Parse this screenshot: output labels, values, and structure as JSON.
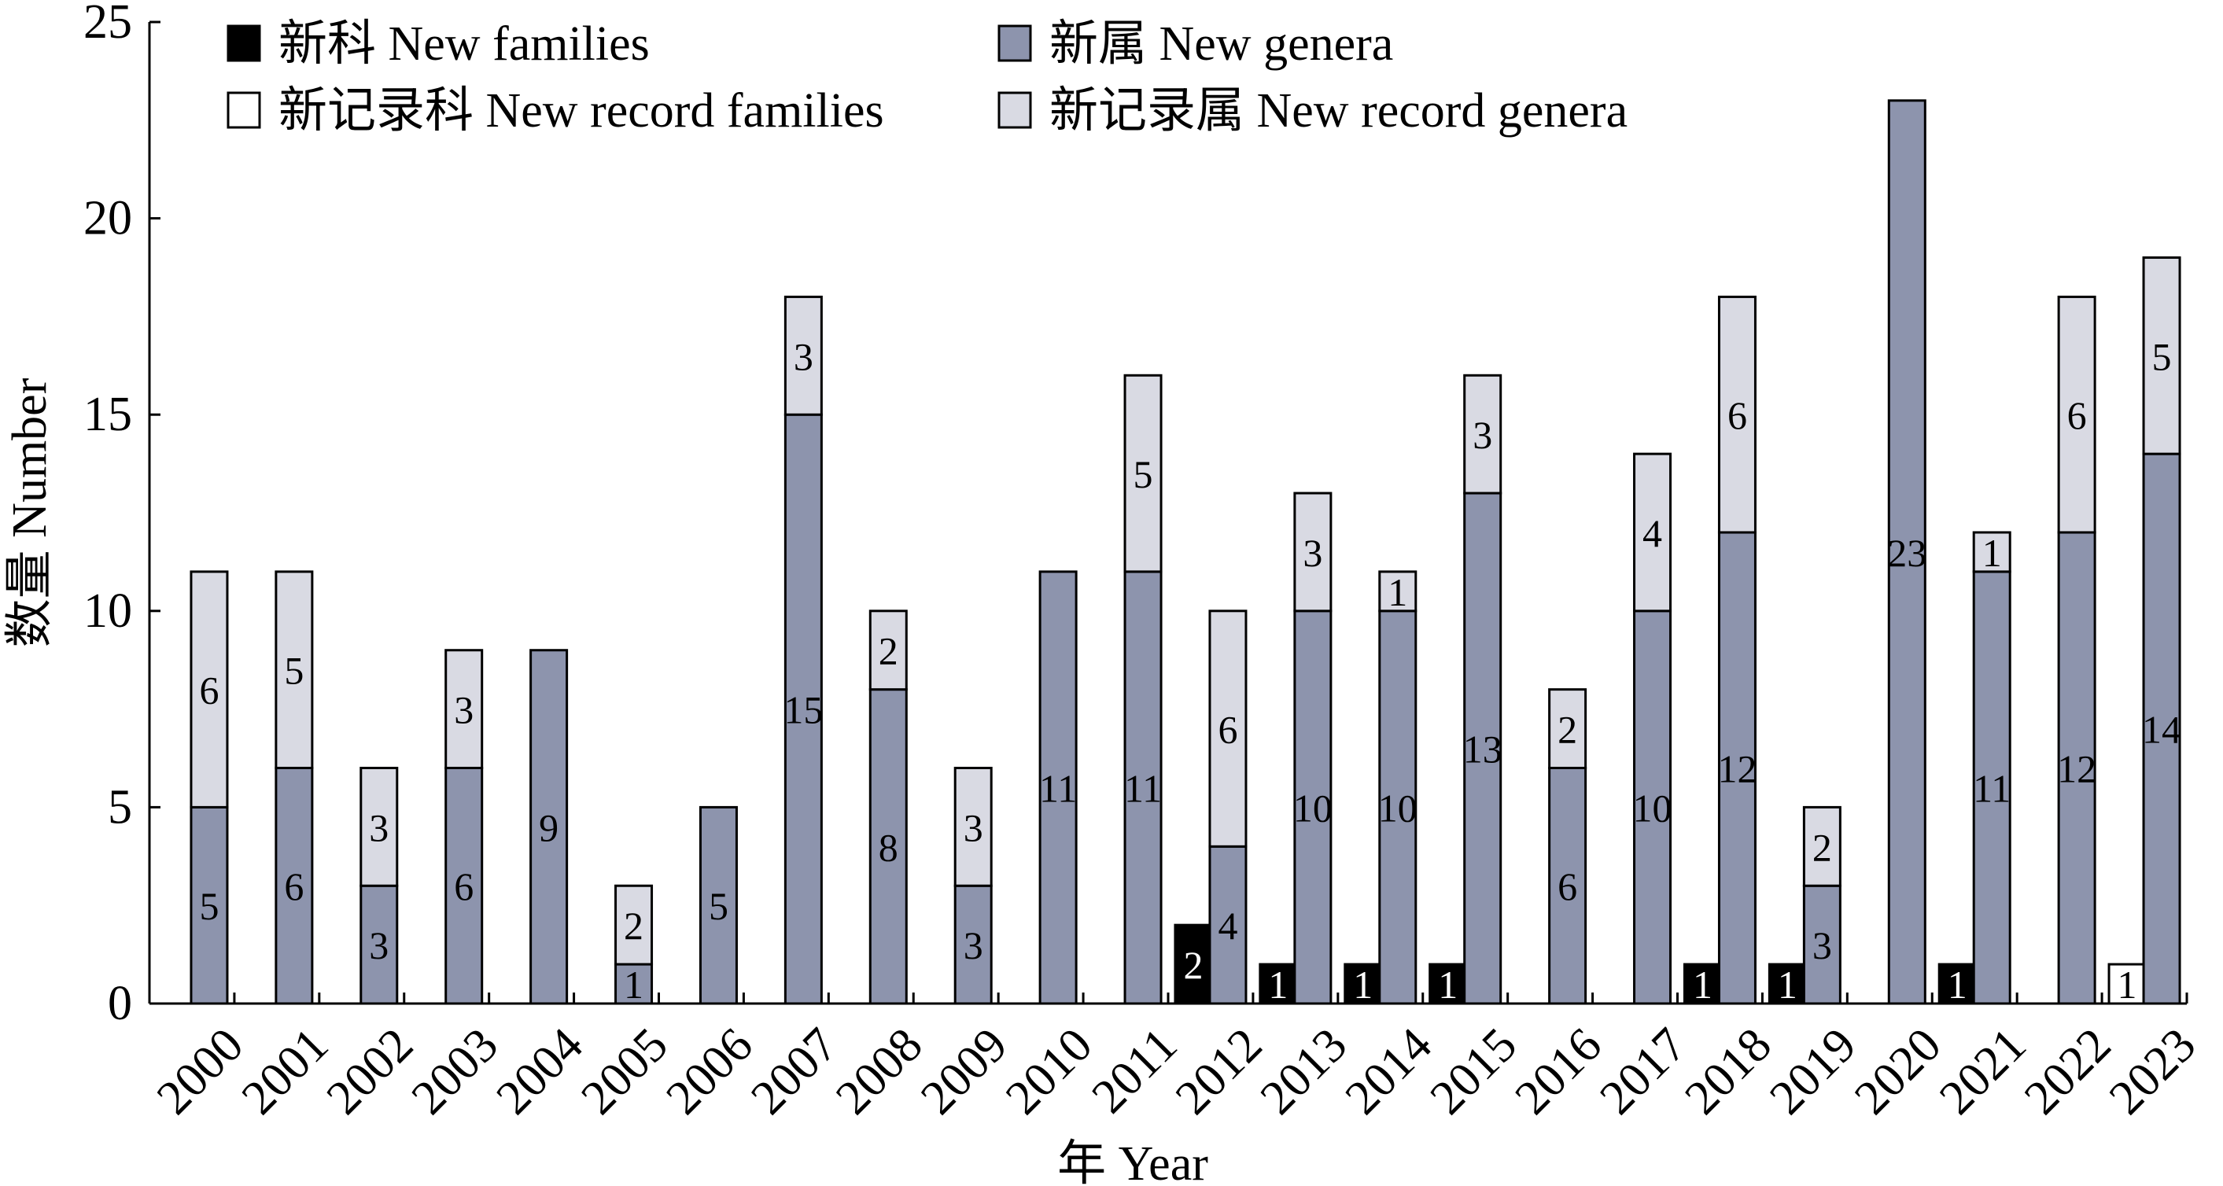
{
  "chart_data": {
    "type": "bar",
    "stacked": true,
    "xlabel": "年 Year",
    "ylabel": "数量 Number",
    "ylim": [
      0,
      25
    ],
    "yticks": [
      0,
      5,
      10,
      15,
      20,
      25
    ],
    "grid": false,
    "legend_position": "top-left",
    "categories": [
      "2000",
      "2001",
      "2002",
      "2003",
      "2004",
      "2005",
      "2006",
      "2007",
      "2008",
      "2009",
      "2010",
      "2011",
      "2012",
      "2013",
      "2014",
      "2015",
      "2016",
      "2017",
      "2018",
      "2019",
      "2020",
      "2021",
      "2022",
      "2023"
    ],
    "series": [
      {
        "name": "新科 New families",
        "color": "#000000",
        "label_color": "#ffffff",
        "values": [
          0,
          0,
          0,
          0,
          0,
          0,
          0,
          0,
          0,
          0,
          0,
          0,
          2,
          1,
          1,
          1,
          0,
          0,
          1,
          1,
          0,
          1,
          0,
          0
        ]
      },
      {
        "name": "新记录科 New record families",
        "color": "#ffffff",
        "label_color": "#000000",
        "values": [
          0,
          0,
          0,
          0,
          0,
          0,
          0,
          0,
          0,
          0,
          0,
          0,
          0,
          0,
          0,
          0,
          0,
          0,
          0,
          0,
          0,
          0,
          0,
          1
        ]
      },
      {
        "name": "新属 New genera",
        "color": "#8d94ad",
        "label_color": "#000000",
        "values": [
          5,
          6,
          3,
          6,
          9,
          1,
          5,
          15,
          8,
          3,
          11,
          11,
          4,
          10,
          10,
          13,
          6,
          10,
          12,
          3,
          23,
          11,
          12,
          14
        ]
      },
      {
        "name": "新记录属 New record genera",
        "color": "#d9dae3",
        "label_color": "#000000",
        "values": [
          6,
          5,
          3,
          3,
          0,
          2,
          0,
          3,
          2,
          3,
          0,
          5,
          6,
          3,
          1,
          3,
          2,
          4,
          6,
          2,
          0,
          1,
          6,
          5
        ]
      }
    ]
  }
}
